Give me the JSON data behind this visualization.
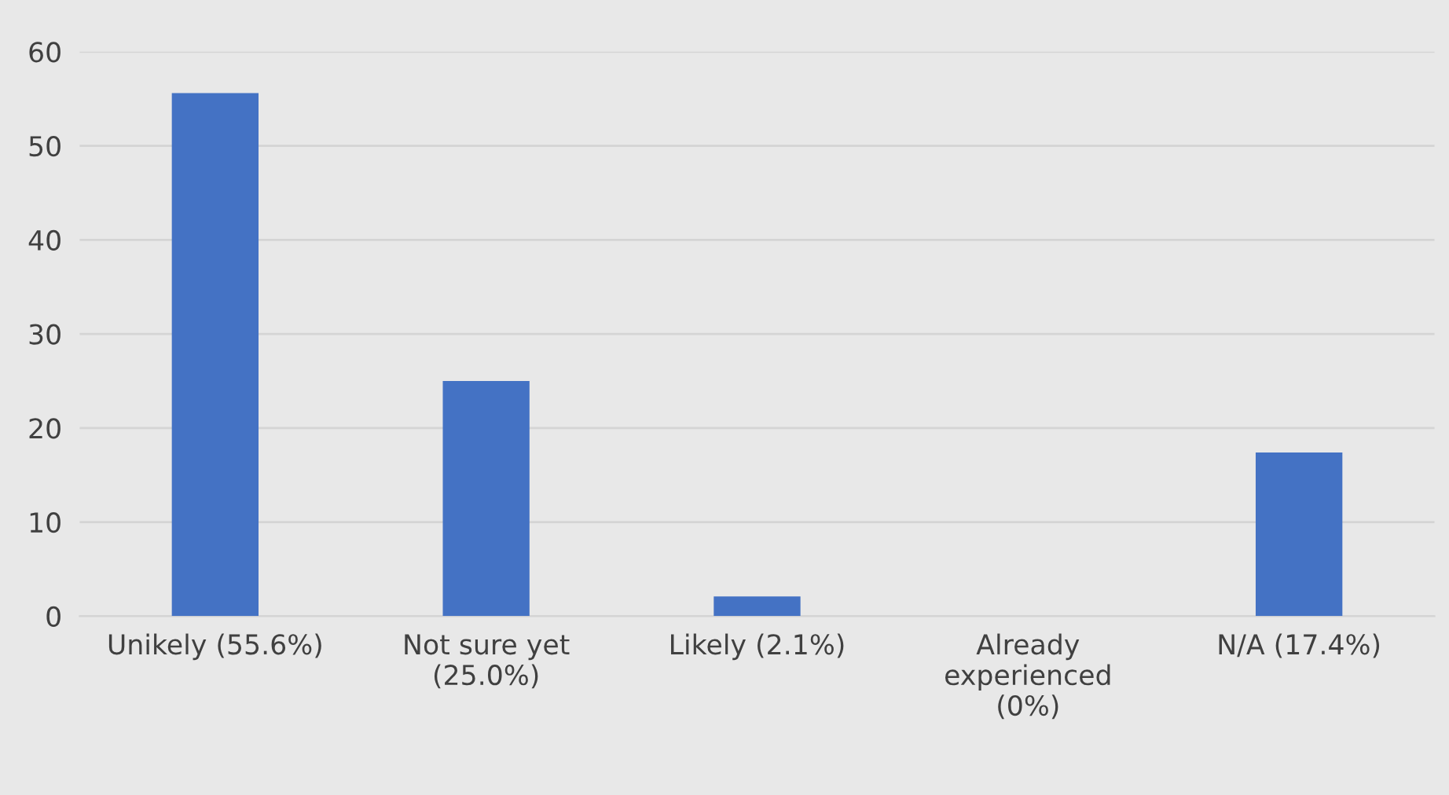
{
  "chart_data": {
    "type": "bar",
    "categories": [
      "Unikely (55.6%)",
      "Not sure yet\n(25.0%)",
      "Likely (2.1%)",
      "Already\nexperienced\n(0%)",
      "N/A (17.4%)"
    ],
    "values": [
      55.6,
      25.0,
      2.1,
      0,
      17.4
    ],
    "color": "#4472c4",
    "ylim": [
      0,
      60
    ],
    "yticks": [
      0,
      10,
      20,
      30,
      40,
      50,
      60
    ],
    "grid": "y"
  }
}
